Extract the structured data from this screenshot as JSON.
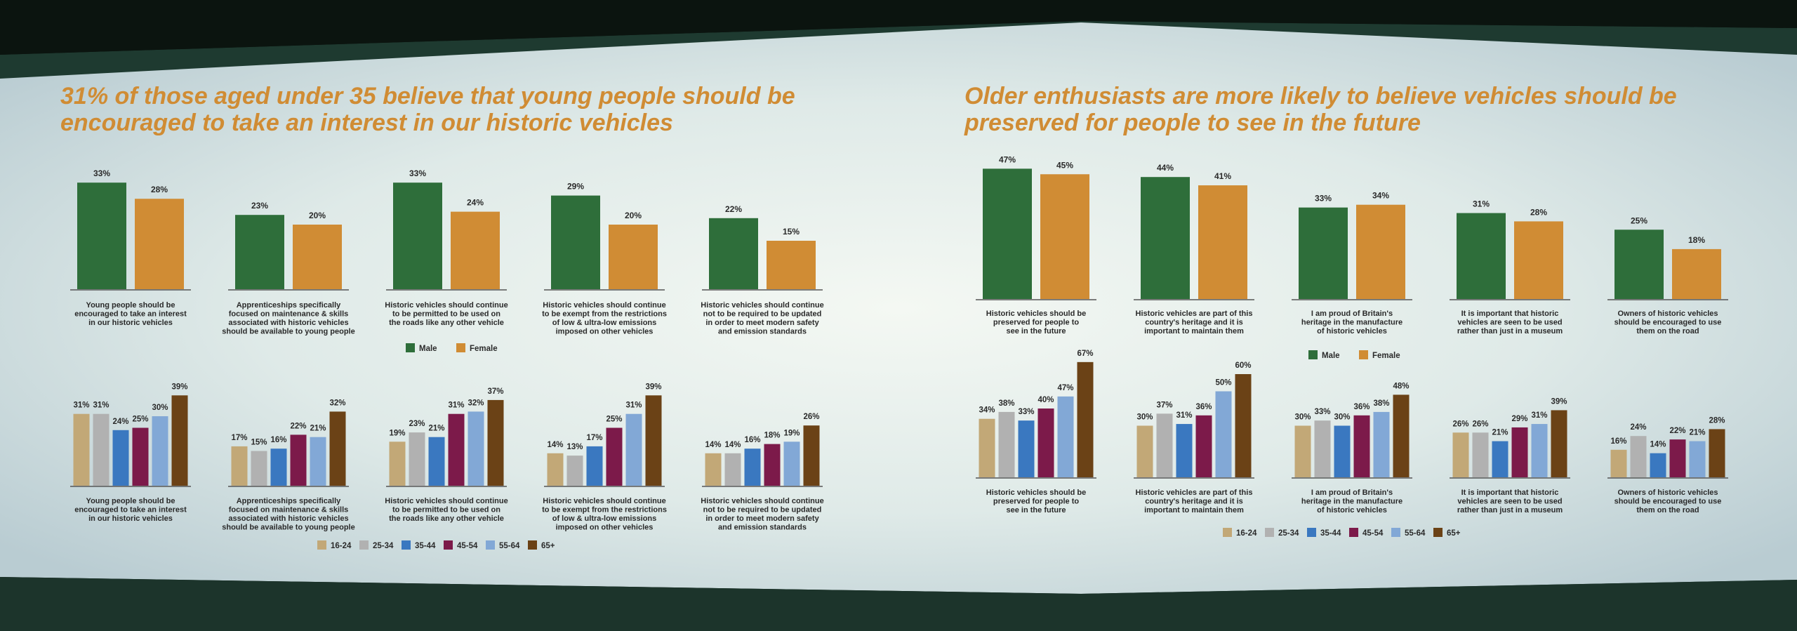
{
  "titles": {
    "left": "31% of those aged under 35 believe that young people should be encouraged to take an interest in our historic vehicles",
    "right": "Older enthusiasts are more likely to believe vehicles should be preserved for people to see in the future"
  },
  "colors": {
    "male": "#2e6e3a",
    "female": "#d08c34",
    "a16_24": "#c2a877",
    "a25_34": "#b1b1b1",
    "a35_44": "#3a78c0",
    "a45_54": "#7c1a4a",
    "a55_64": "#82a8d6",
    "a65": "#6b4216",
    "title": "#d08c34"
  },
  "legends": {
    "gender": [
      {
        "name": "Male",
        "color": "#2e6e3a"
      },
      {
        "name": "Female",
        "color": "#d08c34"
      }
    ],
    "age": [
      {
        "name": "16-24",
        "color": "#c2a877"
      },
      {
        "name": "25-34",
        "color": "#b1b1b1"
      },
      {
        "name": "35-44",
        "color": "#3a78c0"
      },
      {
        "name": "45-54",
        "color": "#7c1a4a"
      },
      {
        "name": "55-64",
        "color": "#82a8d6"
      },
      {
        "name": "65+",
        "color": "#6b4216"
      }
    ]
  },
  "chart_data": [
    {
      "type": "bar",
      "panel": "left",
      "group": "gender",
      "title": "Young people should be encouraged to take an interest in our historic vehicles",
      "categories": [
        "Male",
        "Female"
      ],
      "values": [
        33,
        28
      ],
      "labels": [
        "33%",
        "28%"
      ],
      "caption": [
        "Young people should be",
        "encouraged to take an interest",
        "in our historic vehicles"
      ]
    },
    {
      "type": "bar",
      "panel": "left",
      "group": "gender",
      "title": "Apprenticeships specifically focused on maintenance & skills associated with historic vehicles should be available to young people",
      "categories": [
        "Male",
        "Female"
      ],
      "values": [
        23,
        20
      ],
      "labels": [
        "23%",
        "20%"
      ],
      "caption": [
        "Apprenticeships specifically",
        "focused on maintenance & skills",
        "associated with historic vehicles",
        "should be available to young people"
      ]
    },
    {
      "type": "bar",
      "panel": "left",
      "group": "gender",
      "title": "Historic vehicles should continue to be permitted to be used on the roads like any other vehicle",
      "categories": [
        "Male",
        "Female"
      ],
      "values": [
        33,
        24
      ],
      "labels": [
        "33%",
        "24%"
      ],
      "caption": [
        "Historic vehicles should continue",
        "to be permitted to be used on",
        "the roads like any other vehicle"
      ]
    },
    {
      "type": "bar",
      "panel": "left",
      "group": "gender",
      "title": "Historic vehicles should continue to be exempt from the restrictions of low & ultra-low emissions imposed on other vehicles",
      "categories": [
        "Male",
        "Female"
      ],
      "values": [
        29,
        20
      ],
      "labels": [
        "29%",
        "20%"
      ],
      "caption": [
        "Historic vehicles should continue",
        "to be exempt from the restrictions",
        "of low & ultra-low emissions",
        "imposed on other vehicles"
      ]
    },
    {
      "type": "bar",
      "panel": "left",
      "group": "gender",
      "title": "Historic vehicles should continue not to be required to be updated in order to meet modern safety and emission standards",
      "categories": [
        "Male",
        "Female"
      ],
      "values": [
        22,
        15
      ],
      "labels": [
        "22%",
        "15%"
      ],
      "caption": [
        "Historic vehicles should continue",
        "not to be required to be updated",
        "in order to meet modern safety",
        "and emission standards"
      ]
    },
    {
      "type": "bar",
      "panel": "left",
      "group": "age",
      "title": "Young people should be encouraged to take an interest in our historic vehicles",
      "categories": [
        "16-24",
        "25-34",
        "35-44",
        "45-54",
        "55-64",
        "65+"
      ],
      "values": [
        31,
        31,
        24,
        25,
        30,
        39
      ],
      "labels": [
        "31%",
        "31%",
        "24%",
        "25%",
        "30%",
        "39%"
      ],
      "caption": [
        "Young people should be",
        "encouraged to take an interest",
        "in our historic vehicles"
      ]
    },
    {
      "type": "bar",
      "panel": "left",
      "group": "age",
      "title": "Apprenticeships specifically focused on maintenance & skills associated with historic vehicles should be available to young people",
      "categories": [
        "16-24",
        "25-34",
        "35-44",
        "45-54",
        "55-64",
        "65+"
      ],
      "values": [
        17,
        15,
        16,
        22,
        21,
        32
      ],
      "labels": [
        "17%",
        "15%",
        "16%",
        "22%",
        "21%",
        "32%"
      ],
      "caption": [
        "Apprenticeships specifically",
        "focused on maintenance & skills",
        "associated with historic vehicles",
        "should be available to young people"
      ]
    },
    {
      "type": "bar",
      "panel": "left",
      "group": "age",
      "title": "Historic vehicles should continue to be permitted to be used on the roads like any other vehicle",
      "categories": [
        "16-24",
        "25-34",
        "35-44",
        "45-54",
        "55-64",
        "65+"
      ],
      "values": [
        19,
        23,
        21,
        31,
        32,
        37
      ],
      "labels": [
        "19%",
        "23%",
        "21%",
        "31%",
        "32%",
        "37%"
      ],
      "caption": [
        "Historic vehicles should continue",
        "to be permitted to be used on",
        "the roads like any other vehicle"
      ]
    },
    {
      "type": "bar",
      "panel": "left",
      "group": "age",
      "title": "Historic vehicles should continue to be exempt from the restrictions of low & ultra-low emissions imposed on other vehicles",
      "categories": [
        "16-24",
        "25-34",
        "35-44",
        "45-54",
        "55-64",
        "65+"
      ],
      "values": [
        14,
        13,
        17,
        25,
        31,
        39
      ],
      "labels": [
        "14%",
        "13%",
        "17%",
        "25%",
        "31%",
        "39%"
      ],
      "caption": [
        "Historic vehicles should continue",
        "to be exempt from the restrictions",
        "of low & ultra-low emissions",
        "imposed on other vehicles"
      ]
    },
    {
      "type": "bar",
      "panel": "left",
      "group": "age",
      "title": "Historic vehicles should continue not to be required to be updated in order to meet modern safety and emission standards",
      "categories": [
        "16-24",
        "25-34",
        "35-44",
        "45-54",
        "55-64",
        "65+"
      ],
      "values": [
        14,
        14,
        16,
        18,
        19,
        26
      ],
      "labels": [
        "14%",
        "14%",
        "16%",
        "18%",
        "19%",
        "26%"
      ],
      "caption": [
        "Historic vehicles should continue",
        "not to be required to be updated",
        "in order to meet modern safety",
        "and emission standards"
      ]
    },
    {
      "type": "bar",
      "panel": "right",
      "group": "gender",
      "title": "Historic vehicles should be preserved for people to see in the future",
      "categories": [
        "Male",
        "Female"
      ],
      "values": [
        47,
        45
      ],
      "labels": [
        "47%",
        "45%"
      ],
      "caption": [
        "Historic vehicles should be",
        "preserved for people to",
        "see in the future"
      ]
    },
    {
      "type": "bar",
      "panel": "right",
      "group": "gender",
      "title": "Historic vehicles are part of this country's heritage and it is important to maintain them",
      "categories": [
        "Male",
        "Female"
      ],
      "values": [
        44,
        41
      ],
      "labels": [
        "44%",
        "41%"
      ],
      "caption": [
        "Historic vehicles are part of this",
        "country's heritage and it is",
        "important to maintain them"
      ]
    },
    {
      "type": "bar",
      "panel": "right",
      "group": "gender",
      "title": "I am proud of Britain's heritage in the manufacture of historic vehicles",
      "categories": [
        "Male",
        "Female"
      ],
      "values": [
        33,
        34
      ],
      "labels": [
        "33%",
        "34%"
      ],
      "caption": [
        "I am proud of Britain's",
        "heritage in the manufacture",
        "of historic vehicles"
      ]
    },
    {
      "type": "bar",
      "panel": "right",
      "group": "gender",
      "title": "It is important that historic vehicles are seen to be used rather than just in a museum",
      "categories": [
        "Male",
        "Female"
      ],
      "values": [
        31,
        28
      ],
      "labels": [
        "31%",
        "28%"
      ],
      "caption": [
        "It is important that historic",
        "vehicles are seen to be used",
        "rather than just in a museum"
      ]
    },
    {
      "type": "bar",
      "panel": "right",
      "group": "gender",
      "title": "Owners of historic vehicles should be encouraged to use them on the road",
      "categories": [
        "Male",
        "Female"
      ],
      "values": [
        25,
        18
      ],
      "labels": [
        "25%",
        "18%"
      ],
      "caption": [
        "Owners of historic vehicles",
        "should be encouraged to use",
        "them on the road"
      ]
    },
    {
      "type": "bar",
      "panel": "right",
      "group": "age",
      "title": "Historic vehicles should be preserved for people to see in the future",
      "categories": [
        "16-24",
        "25-34",
        "35-44",
        "45-54",
        "55-64",
        "65+"
      ],
      "values": [
        34,
        38,
        33,
        40,
        47,
        67
      ],
      "labels": [
        "34%",
        "38%",
        "33%",
        "40%",
        "47%",
        "67%"
      ],
      "caption": [
        "Historic vehicles should be",
        "preserved for people to",
        "see in the future"
      ]
    },
    {
      "type": "bar",
      "panel": "right",
      "group": "age",
      "title": "Historic vehicles are part of this country's heritage and it is important to maintain them",
      "categories": [
        "16-24",
        "25-34",
        "35-44",
        "45-54",
        "55-64",
        "65+"
      ],
      "values": [
        30,
        37,
        31,
        36,
        50,
        60
      ],
      "labels": [
        "30%",
        "37%",
        "31%",
        "36%",
        "50%",
        "60%"
      ],
      "caption": [
        "Historic vehicles are part of this",
        "country's heritage and it is",
        "important to maintain them"
      ]
    },
    {
      "type": "bar",
      "panel": "right",
      "group": "age",
      "title": "I am proud of Britain's heritage in the manufacture of historic vehicles",
      "categories": [
        "16-24",
        "25-34",
        "35-44",
        "45-54",
        "55-64",
        "65+"
      ],
      "values": [
        30,
        33,
        30,
        36,
        38,
        48
      ],
      "labels": [
        "30%",
        "33%",
        "30%",
        "36%",
        "38%",
        "48%"
      ],
      "caption": [
        "I am proud of Britain's",
        "heritage in the manufacture",
        "of historic vehicles"
      ]
    },
    {
      "type": "bar",
      "panel": "right",
      "group": "age",
      "title": "It is important that historic vehicles are seen to be used rather than just in a museum",
      "categories": [
        "16-24",
        "25-34",
        "35-44",
        "45-54",
        "55-64",
        "65+"
      ],
      "values": [
        26,
        26,
        21,
        29,
        31,
        39
      ],
      "labels": [
        "26%",
        "26%",
        "21%",
        "29%",
        "31%",
        "39%"
      ],
      "caption": [
        "It is important that historic",
        "vehicles are seen to be used",
        "rather than just in a museum"
      ]
    },
    {
      "type": "bar",
      "panel": "right",
      "group": "age",
      "title": "Owners of historic vehicles should be encouraged to use them on the road",
      "categories": [
        "16-24",
        "25-34",
        "35-44",
        "45-54",
        "55-64",
        "65+"
      ],
      "values": [
        16,
        24,
        14,
        22,
        21,
        28
      ],
      "labels": [
        "16%",
        "24%",
        "14%",
        "22%",
        "21%",
        "28%"
      ],
      "caption": [
        "Owners of historic vehicles",
        "should be encouraged to use",
        "them on the road"
      ]
    }
  ]
}
